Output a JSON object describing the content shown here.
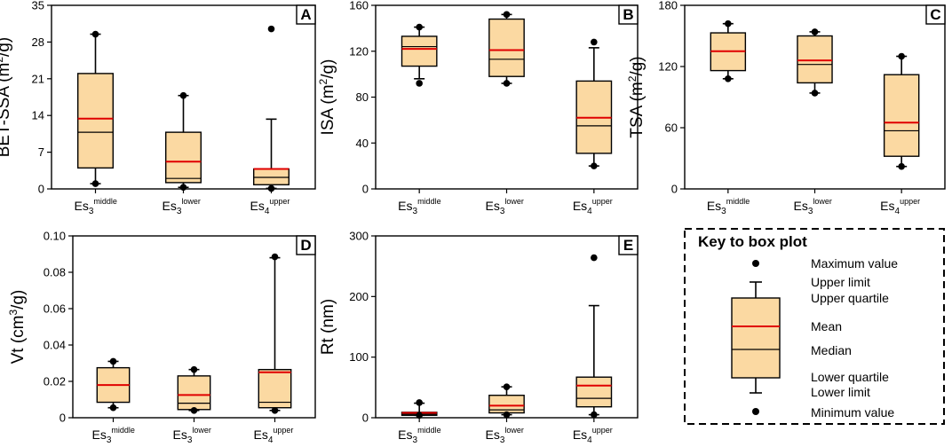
{
  "colors": {
    "box_fill": "#fbd9a2",
    "mean_line": "#e00000",
    "median_line": "#000000",
    "frame": "#000000"
  },
  "key": {
    "title": "Key to box plot",
    "maximum": "Maximum value",
    "upper_limit": "Upper limit",
    "upper_quartile": "Upper quartile",
    "mean": "Mean",
    "median": "Median",
    "lower_quartile": "Lower quartile",
    "lower_limit": "Lower limit",
    "minimum": "Minimum value"
  },
  "chart_data": [
    {
      "type": "box",
      "panel": "A",
      "ylabel": "BET-SSA (m²/g)",
      "ylabel_parts": [
        "BET-SSA (m",
        "2",
        "/g)"
      ],
      "ylim": [
        0,
        35
      ],
      "yticks": [
        0,
        7,
        14,
        21,
        28,
        35
      ],
      "categories": [
        {
          "base": "Es",
          "sub": "3",
          "sup": "middle"
        },
        {
          "base": "Es",
          "sub": "3",
          "sup": "lower"
        },
        {
          "base": "Es",
          "sub": "4",
          "sup": "upper"
        }
      ],
      "boxes": [
        {
          "min": 1.0,
          "whisker_low": 1.0,
          "q1": 4.0,
          "median": 10.8,
          "mean": 13.4,
          "q3": 22.0,
          "whisker_high": 29.5,
          "max": 29.5
        },
        {
          "min": 0.3,
          "whisker_low": 0.3,
          "q1": 1.2,
          "median": 2.0,
          "mean": 5.2,
          "q3": 10.8,
          "whisker_high": 17.8,
          "max": 17.8
        },
        {
          "min": 0.1,
          "whisker_low": 0.1,
          "q1": 0.8,
          "median": 2.2,
          "mean": 3.8,
          "q3": 3.8,
          "whisker_high": 13.3,
          "max": 30.5
        }
      ]
    },
    {
      "type": "box",
      "panel": "B",
      "ylabel": "ISA (m²/g)",
      "ylabel_parts": [
        "ISA (m",
        "2",
        "/g)"
      ],
      "ylim": [
        0,
        160
      ],
      "yticks": [
        0,
        40,
        80,
        120,
        160
      ],
      "categories": [
        {
          "base": "Es",
          "sub": "3",
          "sup": "middle"
        },
        {
          "base": "Es",
          "sub": "3",
          "sup": "lower"
        },
        {
          "base": "Es",
          "sub": "4",
          "sup": "upper"
        }
      ],
      "boxes": [
        {
          "min": 92,
          "whisker_low": 96,
          "q1": 107,
          "median": 124,
          "mean": 122,
          "q3": 133,
          "whisker_high": 141,
          "max": 141
        },
        {
          "min": 92,
          "whisker_low": 92,
          "q1": 98,
          "median": 113,
          "mean": 121,
          "q3": 148,
          "whisker_high": 152,
          "max": 152
        },
        {
          "min": 20,
          "whisker_low": 20,
          "q1": 31,
          "median": 55,
          "mean": 62,
          "q3": 94,
          "whisker_high": 123,
          "max": 128
        }
      ]
    },
    {
      "type": "box",
      "panel": "C",
      "ylabel": "TSA (m²/g)",
      "ylabel_parts": [
        "TSA (m",
        "2",
        "/g)"
      ],
      "ylim": [
        0,
        180
      ],
      "yticks": [
        0,
        60,
        120,
        180
      ],
      "categories": [
        {
          "base": "Es",
          "sub": "3",
          "sup": "middle"
        },
        {
          "base": "Es",
          "sub": "3",
          "sup": "lower"
        },
        {
          "base": "Es",
          "sub": "4",
          "sup": "upper"
        }
      ],
      "boxes": [
        {
          "min": 108,
          "whisker_low": 108,
          "q1": 116,
          "median": 135,
          "mean": 135,
          "q3": 153,
          "whisker_high": 162,
          "max": 162
        },
        {
          "min": 94,
          "whisker_low": 94,
          "q1": 104,
          "median": 122,
          "mean": 126,
          "q3": 150,
          "whisker_high": 154,
          "max": 154
        },
        {
          "min": 22,
          "whisker_low": 22,
          "q1": 32,
          "median": 57,
          "mean": 65,
          "q3": 112,
          "whisker_high": 130,
          "max": 130
        }
      ]
    },
    {
      "type": "box",
      "panel": "D",
      "ylabel": "Vt (cm³/g)",
      "ylabel_parts": [
        "Vt (cm",
        "3",
        "/g)"
      ],
      "ylim": [
        0,
        0.1
      ],
      "yticks": [
        0,
        0.02,
        0.04,
        0.06,
        0.08,
        0.1
      ],
      "ytick_labels": [
        "0",
        "0.02",
        "0.04",
        "0.06",
        "0.08",
        "0.10"
      ],
      "categories": [
        {
          "base": "Es",
          "sub": "3",
          "sup": "middle"
        },
        {
          "base": "Es",
          "sub": "3",
          "sup": "lower"
        },
        {
          "base": "Es",
          "sub": "4",
          "sup": "upper"
        }
      ],
      "boxes": [
        {
          "min": 0.0055,
          "whisker_low": 0.0055,
          "q1": 0.0085,
          "median": 0.018,
          "mean": 0.018,
          "q3": 0.0275,
          "whisker_high": 0.031,
          "max": 0.031
        },
        {
          "min": 0.004,
          "whisker_low": 0.004,
          "q1": 0.0045,
          "median": 0.008,
          "mean": 0.0125,
          "q3": 0.023,
          "whisker_high": 0.0265,
          "max": 0.0265
        },
        {
          "min": 0.004,
          "whisker_low": 0.004,
          "q1": 0.0055,
          "median": 0.0085,
          "mean": 0.025,
          "q3": 0.0265,
          "whisker_high": 0.088,
          "max": 0.0885
        }
      ]
    },
    {
      "type": "box",
      "panel": "E",
      "ylabel": "Rt (nm)",
      "ylabel_parts": [
        "Rt (nm)",
        "",
        ""
      ],
      "ylim": [
        0,
        300
      ],
      "yticks": [
        0,
        100,
        200,
        300
      ],
      "categories": [
        {
          "base": "Es",
          "sub": "3",
          "sup": "middle"
        },
        {
          "base": "Es",
          "sub": "3",
          "sup": "lower"
        },
        {
          "base": "Es",
          "sub": "4",
          "sup": "upper"
        }
      ],
      "boxes": [
        {
          "min": 4,
          "whisker_low": 4,
          "q1": 4,
          "median": 6,
          "mean": 8,
          "q3": 9,
          "whisker_high": 24,
          "max": 25
        },
        {
          "min": 5,
          "whisker_low": 5,
          "q1": 8,
          "median": 13,
          "mean": 20,
          "q3": 37,
          "whisker_high": 51,
          "max": 51
        },
        {
          "min": 5,
          "whisker_low": 5,
          "q1": 18,
          "median": 32,
          "mean": 53,
          "q3": 67,
          "whisker_high": 185,
          "max": 264
        }
      ]
    }
  ]
}
